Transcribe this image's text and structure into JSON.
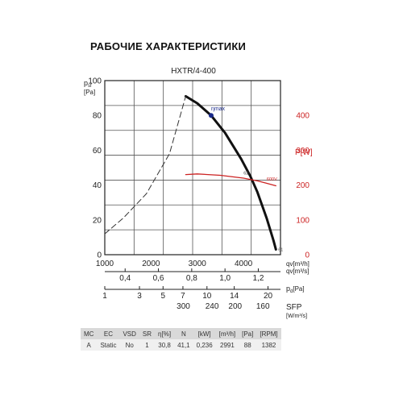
{
  "heading": "РАБОЧИЕ ХАРАКТЕРИСТИКИ",
  "chart_data": {
    "type": "line",
    "title": "HXTR/4-400",
    "y_left": {
      "label_main": "p",
      "label_sub": "sf",
      "label_unit": "[Pa]",
      "range": [
        0,
        100
      ],
      "ticks": [
        0,
        20,
        40,
        60,
        80,
        100
      ]
    },
    "y_right": {
      "label": "P[W]",
      "range": [
        0,
        500
      ],
      "ticks": [
        0,
        100,
        200,
        300,
        400
      ]
    },
    "x": {
      "label": "qv[m³/h]",
      "range": [
        1000,
        4800
      ],
      "ticks": [
        1000,
        2000,
        3000,
        4000
      ]
    },
    "grid": true,
    "series": [
      {
        "name": "",
        "axis": "left",
        "style": "solid-thick",
        "color": "#111111",
        "points": [
          [
            2750,
            91
          ],
          [
            3000,
            87
          ],
          [
            3300,
            80
          ],
          [
            3600,
            70
          ],
          [
            3950,
            55
          ],
          [
            4150,
            45
          ],
          [
            4300,
            36
          ],
          [
            4500,
            21
          ],
          [
            4650,
            8
          ],
          [
            4700,
            3
          ]
        ]
      },
      {
        "name": "",
        "axis": "left",
        "style": "dashed",
        "color": "#333333",
        "points": [
          [
            1000,
            12
          ],
          [
            1400,
            21
          ],
          [
            1900,
            35
          ],
          [
            2400,
            58
          ],
          [
            2750,
            91
          ]
        ]
      },
      {
        "name": "",
        "axis": "right",
        "style": "solid",
        "color": "#cc2222",
        "points": [
          [
            2750,
            230
          ],
          [
            3000,
            232
          ],
          [
            3500,
            228
          ],
          [
            4000,
            220
          ],
          [
            4300,
            212
          ],
          [
            4500,
            205
          ],
          [
            4700,
            198
          ]
        ]
      }
    ],
    "annotations": [
      {
        "text": "ηmax",
        "x": 3300,
        "y": 80,
        "color": "#1a2a8a",
        "marker": true
      },
      {
        "text": "62",
        "x": 3950,
        "y": 47,
        "color": "#444444"
      },
      {
        "text": "600V",
        "x": 4450,
        "y": 218,
        "axis": "right",
        "color": "#cc2222"
      },
      {
        "text": "61",
        "x": 4700,
        "y": 3,
        "color": "#444444"
      }
    ],
    "secondary_axes": [
      {
        "label": "qv[m³/s]",
        "ticks": [
          {
            "text": "0,4",
            "at": 1440
          },
          {
            "text": "0,6",
            "at": 2160
          },
          {
            "text": "0,8",
            "at": 2880
          },
          {
            "text": "1,0",
            "at": 3600
          },
          {
            "text": "1,2",
            "at": 4320
          }
        ]
      },
      {
        "label_main": "p",
        "label_sub": "d",
        "label_unit": "[Pa]",
        "ticks": [
          {
            "text": "1",
            "at": 1000
          },
          {
            "text": "3",
            "at": 1750
          },
          {
            "text": "5",
            "at": 2260
          },
          {
            "text": "7",
            "at": 2690
          },
          {
            "text": "10",
            "at": 3210
          },
          {
            "text": "14",
            "at": 3800
          },
          {
            "text": "20",
            "at": 4530
          }
        ]
      },
      {
        "label": "SFP",
        "unit": "[W/m³/s]",
        "ticks": [
          {
            "text": "300",
            "at": 2700
          },
          {
            "text": "240",
            "at": 3320
          },
          {
            "text": "200",
            "at": 3820
          },
          {
            "text": "160",
            "at": 4420
          }
        ]
      }
    ]
  },
  "table": {
    "headers": [
      "MC",
      "EC",
      "VSD",
      "SR",
      "η[%]",
      "N",
      "[kW]",
      "[m³/h]",
      "[Pa]",
      "[RPM]"
    ],
    "values": [
      "A",
      "Static",
      "No",
      "1",
      "30,8",
      "41,1",
      "0,236",
      "2991",
      "88",
      "1382"
    ]
  }
}
